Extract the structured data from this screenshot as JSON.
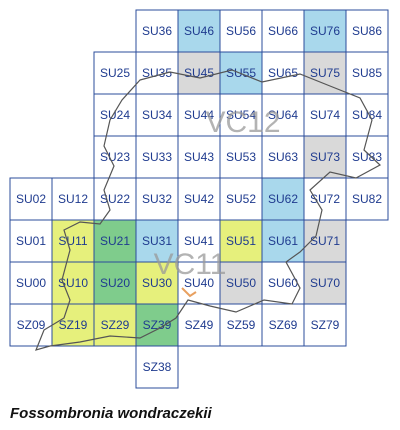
{
  "caption": "Fossombronia wondraczekii",
  "vice_counties": [
    "VC12",
    "VC11"
  ],
  "cells": [
    {
      "label": "SU36",
      "color": null
    },
    {
      "label": "SU46",
      "color": "#a9d8ec"
    },
    {
      "label": "SU56",
      "color": null
    },
    {
      "label": "SU66",
      "color": null
    },
    {
      "label": "SU76",
      "color": "#a9d8ec"
    },
    {
      "label": "SU86",
      "color": null
    },
    {
      "label": "SU25",
      "color": null
    },
    {
      "label": "SU35",
      "color": null
    },
    {
      "label": "SU45",
      "color": "#d9d9d9"
    },
    {
      "label": "SU55",
      "color": "#a9d8ec"
    },
    {
      "label": "SU65",
      "color": null
    },
    {
      "label": "SU75",
      "color": "#d9d9d9"
    },
    {
      "label": "SU85",
      "color": null
    },
    {
      "label": "SU24",
      "color": null
    },
    {
      "label": "SU34",
      "color": null
    },
    {
      "label": "SU44",
      "color": null
    },
    {
      "label": "SU54",
      "color": null
    },
    {
      "label": "SU64",
      "color": null
    },
    {
      "label": "SU74",
      "color": null
    },
    {
      "label": "SU84",
      "color": null
    },
    {
      "label": "SU23",
      "color": null
    },
    {
      "label": "SU33",
      "color": null
    },
    {
      "label": "SU43",
      "color": null
    },
    {
      "label": "SU53",
      "color": null
    },
    {
      "label": "SU63",
      "color": null
    },
    {
      "label": "SU73",
      "color": "#d9d9d9"
    },
    {
      "label": "SU83",
      "color": null
    },
    {
      "label": "SU02",
      "color": null
    },
    {
      "label": "SU12",
      "color": null
    },
    {
      "label": "SU22",
      "color": null
    },
    {
      "label": "SU32",
      "color": null
    },
    {
      "label": "SU42",
      "color": null
    },
    {
      "label": "SU52",
      "color": null
    },
    {
      "label": "SU62",
      "color": "#a9d8ec"
    },
    {
      "label": "SU72",
      "color": null
    },
    {
      "label": "SU82",
      "color": null
    },
    {
      "label": "SU01",
      "color": null
    },
    {
      "label": "SU11",
      "color": "#e6f07c"
    },
    {
      "label": "SU21",
      "color": "#7fcc8c"
    },
    {
      "label": "SU31",
      "color": "#a9d8ec"
    },
    {
      "label": "SU41",
      "color": null
    },
    {
      "label": "SU51",
      "color": "#e6f07c"
    },
    {
      "label": "SU61",
      "color": "#a9d8ec"
    },
    {
      "label": "SU71",
      "color": "#d9d9d9"
    },
    {
      "label": "SU00",
      "color": null
    },
    {
      "label": "SU10",
      "color": "#e6f07c"
    },
    {
      "label": "SU20",
      "color": "#7fcc8c"
    },
    {
      "label": "SU30",
      "color": "#e6f07c"
    },
    {
      "label": "SU40",
      "color": null
    },
    {
      "label": "SU50",
      "color": "#d9d9d9"
    },
    {
      "label": "SU60",
      "color": null
    },
    {
      "label": "SU70",
      "color": "#d9d9d9"
    },
    {
      "label": "SZ09",
      "color": null
    },
    {
      "label": "SZ19",
      "color": "#e6f07c"
    },
    {
      "label": "SZ29",
      "color": "#e6f07c"
    },
    {
      "label": "SZ39",
      "color": "#7fcc8c"
    },
    {
      "label": "SZ49",
      "color": null
    },
    {
      "label": "SZ59",
      "color": null
    },
    {
      "label": "SZ69",
      "color": null
    },
    {
      "label": "SZ79",
      "color": null
    },
    {
      "label": "SZ38",
      "color": null
    }
  ]
}
